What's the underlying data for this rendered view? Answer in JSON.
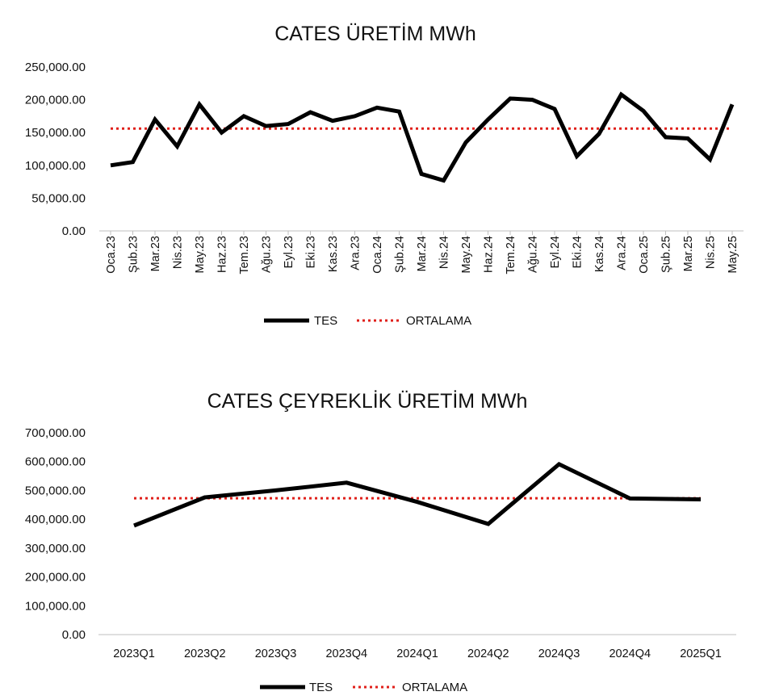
{
  "chart_data": [
    {
      "type": "line",
      "title": "CATES ÜRETİM MWh",
      "xlabel": "",
      "ylabel": "",
      "ylim": [
        0,
        250000
      ],
      "y_ticks": [
        "0.00",
        "50,000.00",
        "100,000.00",
        "150,000.00",
        "200,000.00",
        "250,000.00"
      ],
      "categories": [
        "Oca.23",
        "Şub.23",
        "Mar.23",
        "Nis.23",
        "May.23",
        "Haz.23",
        "Tem.23",
        "Ağu.23",
        "Eyl.23",
        "Eki.23",
        "Kas.23",
        "Ara.23",
        "Oca.24",
        "Şub.24",
        "Mar.24",
        "Nis.24",
        "May.24",
        "Haz.24",
        "Tem.24",
        "Ağu.24",
        "Eyl.24",
        "Eki.24",
        "Kas.24",
        "Ara.24",
        "Oca.25",
        "Şub.25",
        "Mar.25",
        "Nis.25",
        "May.25"
      ],
      "series": [
        {
          "name": "TES",
          "style": "solid",
          "color": "#000000",
          "values": [
            100000,
            105000,
            170000,
            129000,
            193000,
            150000,
            175000,
            160000,
            163000,
            181000,
            168000,
            175000,
            188000,
            182000,
            87000,
            77000,
            135000,
            170000,
            202000,
            200000,
            186000,
            114000,
            148000,
            208000,
            183000,
            143000,
            141000,
            109000,
            193000
          ]
        },
        {
          "name": "ORTALAMA",
          "style": "dotted",
          "color": "#e0201b",
          "values": [
            156000,
            156000,
            156000,
            156000,
            156000,
            156000,
            156000,
            156000,
            156000,
            156000,
            156000,
            156000,
            156000,
            156000,
            156000,
            156000,
            156000,
            156000,
            156000,
            156000,
            156000,
            156000,
            156000,
            156000,
            156000,
            156000,
            156000,
            156000,
            156000
          ]
        }
      ],
      "grid": false,
      "legend": "bottom"
    },
    {
      "type": "line",
      "title": "CATES ÇEYREKLİK ÜRETİM MWh",
      "xlabel": "",
      "ylabel": "",
      "ylim": [
        0,
        700000
      ],
      "y_ticks": [
        "0.00",
        "100,000.00",
        "200,000.00",
        "300,000.00",
        "400,000.00",
        "500,000.00",
        "600,000.00",
        "700,000.00"
      ],
      "categories": [
        "2023Q1",
        "2023Q2",
        "2023Q3",
        "2023Q4",
        "2024Q1",
        "2024Q2",
        "2024Q3",
        "2024Q4",
        "2025Q1"
      ],
      "series": [
        {
          "name": "TES",
          "style": "solid",
          "color": "#000000",
          "values": [
            378000,
            476000,
            500000,
            527000,
            460000,
            384000,
            591000,
            472000,
            469000
          ]
        },
        {
          "name": "ORTALAMA",
          "style": "dotted",
          "color": "#e0201b",
          "values": [
            473000,
            473000,
            473000,
            473000,
            473000,
            473000,
            473000,
            473000,
            473000
          ]
        }
      ],
      "grid": false,
      "legend": "bottom"
    }
  ]
}
